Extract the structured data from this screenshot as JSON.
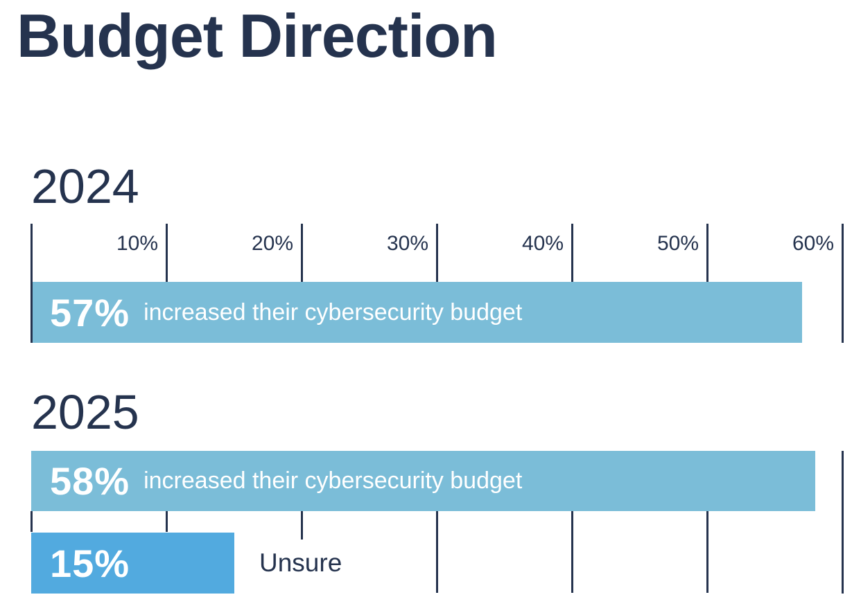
{
  "title": "Budget Direction",
  "colors": {
    "navy": "#25334E",
    "light_blue": "#7BBDD8",
    "medium_blue": "#52AADF",
    "bar_text": "#FFFFFF"
  },
  "axis": {
    "tick_values": [
      0,
      10,
      20,
      30,
      40,
      50,
      60
    ],
    "tick_labels": [
      "",
      "10%",
      "20%",
      "30%",
      "40%",
      "50%",
      "60%"
    ],
    "min": 0,
    "max": 60,
    "unit": "%"
  },
  "chart_data": [
    {
      "type": "bar",
      "title": "2024",
      "orientation": "horizontal",
      "xlim": [
        0,
        60
      ],
      "tick_labels_shown": [
        "10%",
        "20%",
        "30%",
        "40%",
        "50%",
        "60%"
      ],
      "categories": [
        "increased their cybersecurity budget"
      ],
      "values": [
        57
      ],
      "value_labels": [
        "57%"
      ],
      "bar_colors": [
        "#7BBDD8"
      ]
    },
    {
      "type": "bar",
      "title": "2025",
      "orientation": "horizontal",
      "xlim": [
        0,
        60
      ],
      "tick_labels_shown": [],
      "categories": [
        "increased their cybersecurity budget",
        "Unsure"
      ],
      "values": [
        58,
        15
      ],
      "value_labels": [
        "58%",
        "15%"
      ],
      "bar_colors": [
        "#7BBDD8",
        "#52AADF"
      ]
    }
  ]
}
